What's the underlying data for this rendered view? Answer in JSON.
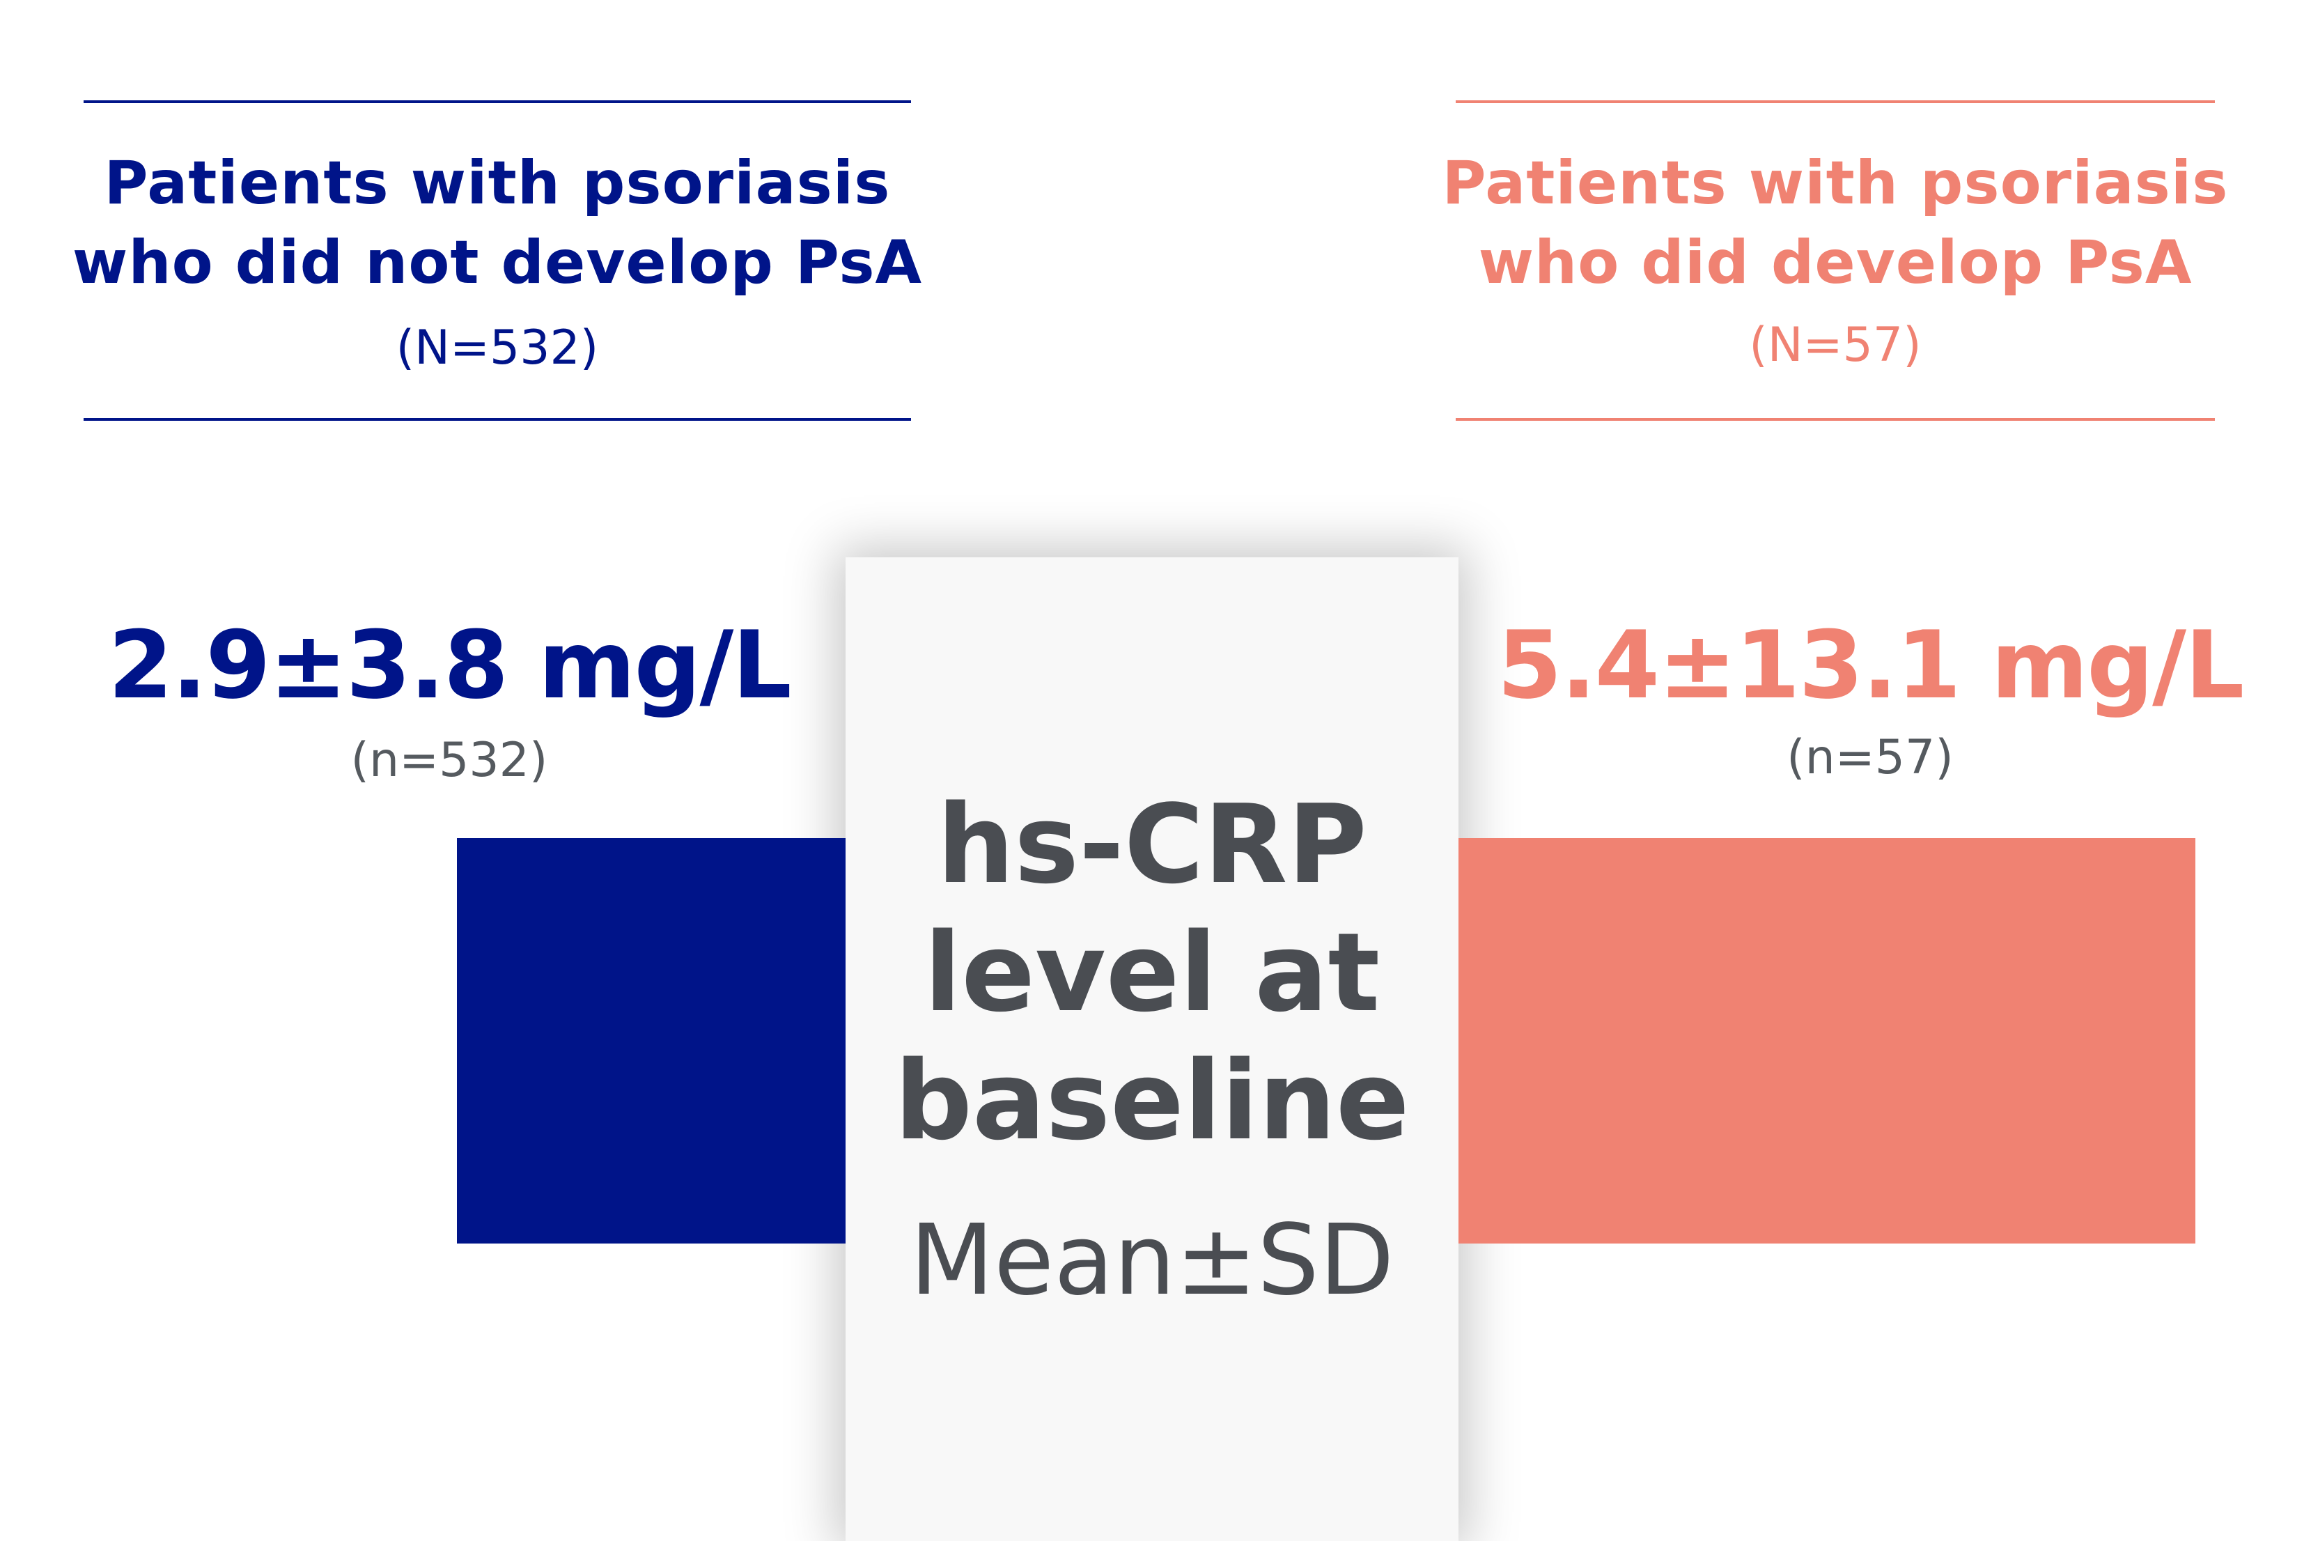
{
  "chart_data": {
    "type": "bar",
    "categories": [
      "Patients with psoriasis who did not develop PsA",
      "Patients with psoriasis who did develop PsA"
    ],
    "groups": [
      {
        "heading_line1": "Patients with psoriasis",
        "heading_line2": "who did not develop PsA",
        "group_n": "(N=532)",
        "value_label": "2.9±3.8 mg/L",
        "value_n": "(n=532)",
        "mean": 2.9,
        "sd": 3.8,
        "color": "#001489"
      },
      {
        "heading_line1": "Patients with psoriasis",
        "heading_line2": "who did develop PsA",
        "group_n": "(N=57)",
        "value_label": "5.4±13.1 mg/L",
        "value_n": "(n=57)",
        "mean": 5.4,
        "sd": 13.1,
        "color": "#f08272"
      }
    ],
    "center": {
      "title_line1": "hs-CRP",
      "title_line2": "level at",
      "title_line3": "baseline",
      "subtitle": "Mean±SD"
    },
    "unit": "mg/L"
  }
}
